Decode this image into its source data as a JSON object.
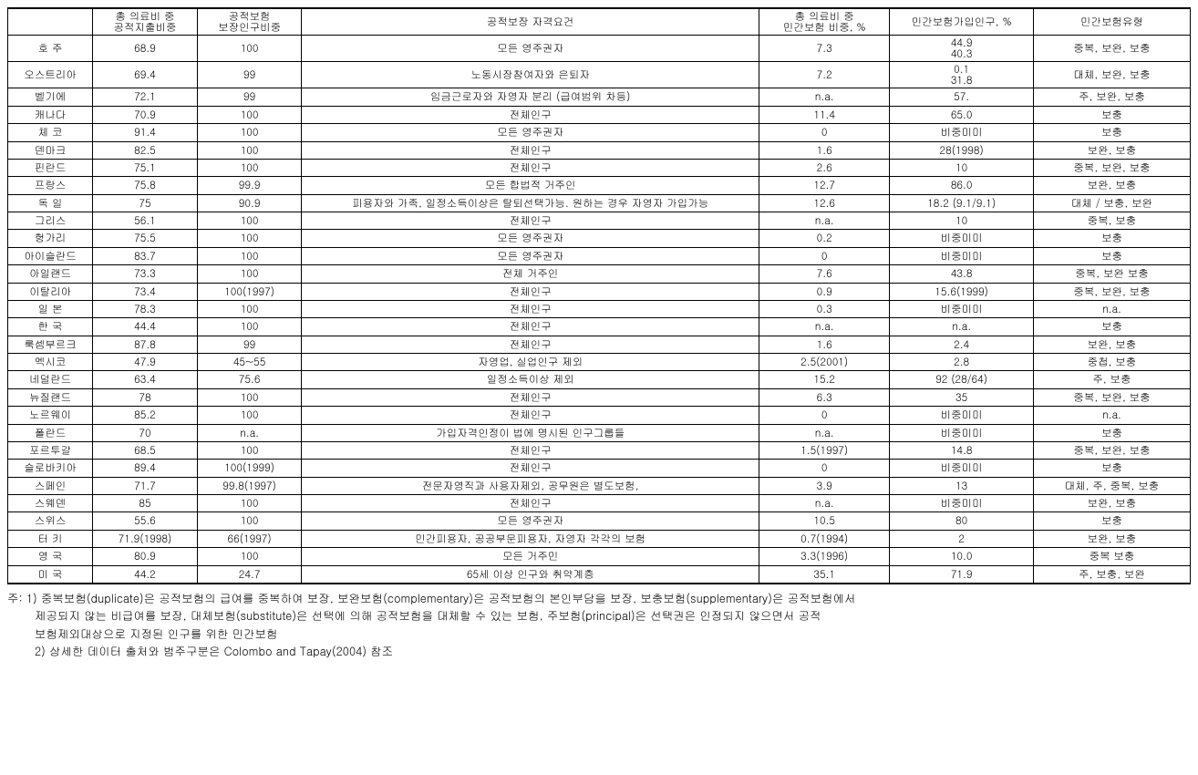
{
  "columns": [
    "",
    "총 의료비 중\n공적지출비중",
    "공적보험\n보장인구비중",
    "공적보장 자격요건",
    "총 의료비 중\n민간보험 비중, %",
    "민간보험가입인구, %",
    "민간보험유형"
  ],
  "rows": [
    {
      "c0": "호  주",
      "c1": "68.9",
      "c2": "100",
      "c3": "모든 영주권자",
      "c4": "7.3",
      "c5": "44.9\n40.3",
      "c6": "중복, 보완, 보충"
    },
    {
      "c0": "오스트리아",
      "c1": "69.4",
      "c2": "99",
      "c3": "노동시장참여자와 은퇴자",
      "c4": "7.2",
      "c5": "0.1\n31.8",
      "c6": "대체, 보완, 보충"
    },
    {
      "c0": "벨기에",
      "c1": "72.1",
      "c2": "99",
      "c3": "임금근로자와 자영자 분리 (급여범위 차등)",
      "c4": "n.a.",
      "c5": "57.",
      "c6": "주, 보완, 보충"
    },
    {
      "c0": "캐나다",
      "c1": "70.9",
      "c2": "100",
      "c3": "전체인구",
      "c4": "11.4",
      "c5": "65.0",
      "c6": "보충"
    },
    {
      "c0": "체  코",
      "c1": "91.4",
      "c2": "100",
      "c3": "모든 영주권자",
      "c4": "0",
      "c5": "비중미미",
      "c6": "보충"
    },
    {
      "c0": "덴마크",
      "c1": "82.5",
      "c2": "100",
      "c3": "전체인구",
      "c4": "1.6",
      "c5": "28(1998)",
      "c6": "보완, 보충"
    },
    {
      "c0": "핀란드",
      "c1": "75.1",
      "c2": "100",
      "c3": "전체인구",
      "c4": "2.6",
      "c5": "10",
      "c6": "중복, 보완, 보충"
    },
    {
      "c0": "프랑스",
      "c1": "75.8",
      "c2": "99.9",
      "c3": "모든 합법적 거주인",
      "c4": "12.7",
      "c5": "86.0",
      "c6": "보완, 보충"
    },
    {
      "c0": "독  일",
      "c1": "75",
      "c2": "90.9",
      "c3": "피용자와 가족, 일정소득이상은 탈퇴선택가능. 원하는 경우 자영자 가입가능",
      "c4": "12.6",
      "c5": "18.2 (9.1/9.1)",
      "c6": "대체 / 보충, 보완"
    },
    {
      "c0": "그리스",
      "c1": "56.1",
      "c2": "100",
      "c3": "전체인구",
      "c4": "n.a.",
      "c5": "10",
      "c6": "중복, 보충"
    },
    {
      "c0": "헝가리",
      "c1": "75.5",
      "c2": "100",
      "c3": "모든 영주권자",
      "c4": "0.2",
      "c5": "비중미미",
      "c6": "보충"
    },
    {
      "c0": "아이슬란드",
      "c1": "83.7",
      "c2": "100",
      "c3": "모든 영주권자",
      "c4": "0",
      "c5": "비중미미",
      "c6": "보충"
    },
    {
      "c0": "아일랜드",
      "c1": "73.3",
      "c2": "100",
      "c3": "전체 거주인",
      "c4": "7.6",
      "c5": "43.8",
      "c6": "중복, 보완 보충"
    },
    {
      "c0": "이탈리아",
      "c1": "73.4",
      "c2": "100(1997)",
      "c3": "전체인구",
      "c4": "0.9",
      "c5": "15.6(1999)",
      "c6": "중복, 보완, 보충"
    },
    {
      "c0": "일  본",
      "c1": "78.3",
      "c2": "100",
      "c3": "전체인구",
      "c4": "0.3",
      "c5": "비중미미",
      "c6": "n.a."
    },
    {
      "c0": "한  국",
      "c1": "44.4",
      "c2": "100",
      "c3": "전체인구",
      "c4": "n.a.",
      "c5": "n.a.",
      "c6": "보충"
    },
    {
      "c0": "룩셈부르크",
      "c1": "87.8",
      "c2": "99",
      "c3": "전체인구",
      "c4": "1.6",
      "c5": "2.4",
      "c6": "보완, 보충"
    },
    {
      "c0": "멕시코",
      "c1": "47.9",
      "c2": "45~55",
      "c3": "자영업, 실업인구 제외",
      "c4": "2.5(2001)",
      "c5": "2.8",
      "c6": "중첩, 보충"
    },
    {
      "c0": "네덜란드",
      "c1": "63.4",
      "c2": "75.6",
      "c3": "일정소득이상 제외",
      "c4": "15.2",
      "c5": "92 (28/64)",
      "c6": "주, 보충"
    },
    {
      "c0": "뉴질랜드",
      "c1": "78",
      "c2": "100",
      "c3": "전체인구",
      "c4": "6.3",
      "c5": "35",
      "c6": "중복, 보완, 보충"
    },
    {
      "c0": "노르웨이",
      "c1": "85.2",
      "c2": "100",
      "c3": "전체인구",
      "c4": "0",
      "c5": "비중미미",
      "c6": "n.a."
    },
    {
      "c0": "폴란드",
      "c1": "70",
      "c2": "n.a.",
      "c3": "가입자격인정이 법에 명시된 인구그룹들",
      "c4": "n.a.",
      "c5": "비중미미",
      "c6": "보충"
    },
    {
      "c0": "포르투갈",
      "c1": "68.5",
      "c2": "100",
      "c3": "전체인구",
      "c4": "1.5(1997)",
      "c5": "14.8",
      "c6": "중복, 보완, 보충"
    },
    {
      "c0": "슬로바키아",
      "c1": "89.4",
      "c2": "100(1999)",
      "c3": "전체인구",
      "c4": "0",
      "c5": "비중미미",
      "c6": "보충"
    },
    {
      "c0": "스페인",
      "c1": "71.7",
      "c2": "99.8(1997)",
      "c3": "전문자영직과 사용자제외, 공무원은 별도보험,",
      "c4": "3.9",
      "c5": "13",
      "c6": "대체, 주, 중복, 보충"
    },
    {
      "c0": "스웨덴",
      "c1": "85",
      "c2": "100",
      "c3": "전체인구",
      "c4": "n.a.",
      "c5": "비중미미",
      "c6": "보완, 보충"
    },
    {
      "c0": "스위스",
      "c1": "55.6",
      "c2": "100",
      "c3": "모든 영주권자",
      "c4": "10.5",
      "c5": "80",
      "c6": "보충"
    },
    {
      "c0": "터  키",
      "c1": "71.9(1998)",
      "c2": "66(1997)",
      "c3": "민간피용자, 공공부문피용자, 자영자 각각의 보험",
      "c4": "0.7(1994)",
      "c5": "2",
      "c6": "보완, 보충"
    },
    {
      "c0": "영  국",
      "c1": "80.9",
      "c2": "100",
      "c3": "모든 거주민",
      "c4": "3.3(1996)",
      "c5": "10.0",
      "c6": "중복 보충"
    },
    {
      "c0": "미  국",
      "c1": "44.2",
      "c2": "24.7",
      "c3": "65세 이상 인구와 취약계층",
      "c4": "35.1",
      "c5": "71.9",
      "c6": "주, 보충, 보완"
    }
  ],
  "notes": {
    "prefix": "주: ",
    "n1a": "1) 중복보험(duplicate)은 공적보험의 급여를 중복하여 보장, 보완보험(complementary)은 공적보험의 본인부담을 보장, 보충보험(supplementary)은 공적보험에서",
    "n1b": "제공되지 않는 비급여를 보장, 대체보험(substitute)은 선택에 의해 공적보험을 대체할 수 있는 보험, 주보험(principal)은 선택권은 인정되지 않으면서 공적",
    "n1c": "보험제외대상으로 지정된 인구를 위한 민간보험",
    "n2": "2) 상세한 데이터 출처와 범주구분은 Colombo and Tapay(2004) 참조"
  }
}
